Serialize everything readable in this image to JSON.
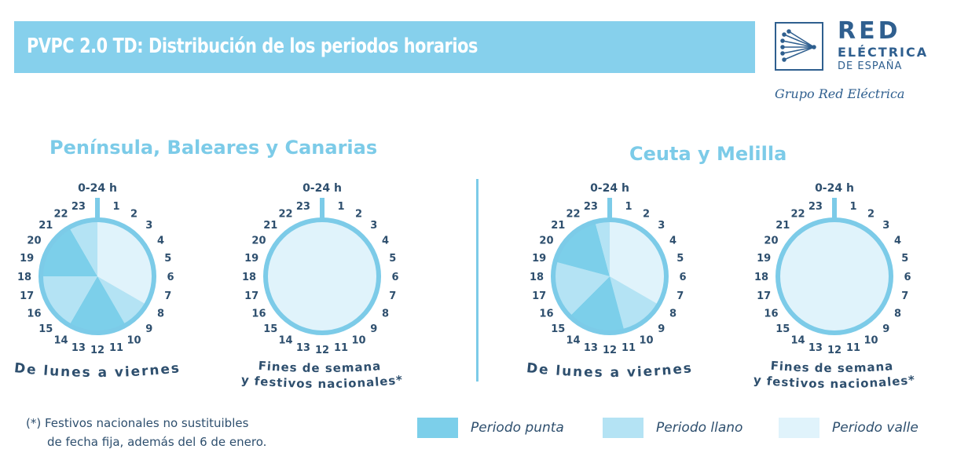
{
  "header": {
    "title": "PVPC 2.0 TD: Distribución de los periodos horarios"
  },
  "logo": {
    "line1": "RED",
    "line2": "ELÉCTRICA",
    "line3": "DE ESPAÑA",
    "tagline": "Grupo Red Eléctrica"
  },
  "colors": {
    "punta": "#7ccfea",
    "llano": "#b4e3f4",
    "valle": "#e0f3fb",
    "ring": "#7ccbe8",
    "text": "#2e4f6e",
    "banner": "#86d0ec"
  },
  "sections": [
    {
      "title": "Península, Baleares y Canarias",
      "clocks": [
        {
          "caption": "De lunes a viernes",
          "top_label": "0-24 h",
          "periods": [
            [
              0,
              8,
              "valle"
            ],
            [
              8,
              10,
              "llano"
            ],
            [
              10,
              14,
              "punta"
            ],
            [
              14,
              18,
              "llano"
            ],
            [
              18,
              22,
              "punta"
            ],
            [
              22,
              24,
              "llano"
            ]
          ]
        },
        {
          "caption": "Fines de semana y festivos nacionales*",
          "top_label": "0-24 h",
          "periods": [
            [
              0,
              24,
              "valle"
            ]
          ]
        }
      ]
    },
    {
      "title": "Ceuta y Melilla",
      "clocks": [
        {
          "caption": "De lunes a viernes",
          "top_label": "0-24 h",
          "periods": [
            [
              0,
              8,
              "valle"
            ],
            [
              8,
              11,
              "llano"
            ],
            [
              11,
              15,
              "punta"
            ],
            [
              15,
              19,
              "llano"
            ],
            [
              19,
              23,
              "punta"
            ],
            [
              23,
              24,
              "llano"
            ]
          ]
        },
        {
          "caption": "Fines de semana y festivos nacionales*",
          "top_label": "0-24 h",
          "periods": [
            [
              0,
              24,
              "valle"
            ]
          ]
        }
      ]
    }
  ],
  "hour_labels": [
    "1",
    "2",
    "3",
    "4",
    "5",
    "6",
    "7",
    "8",
    "9",
    "10",
    "11",
    "12",
    "13",
    "14",
    "15",
    "16",
    "17",
    "18",
    "19",
    "20",
    "21",
    "22",
    "23"
  ],
  "footnote": {
    "line1": "(*) Festivos nacionales no sustituibles",
    "line2": "de fecha fija, además del 6 de enero."
  },
  "legend": [
    {
      "key": "punta",
      "label": "Periodo punta"
    },
    {
      "key": "llano",
      "label": "Periodo llano"
    },
    {
      "key": "valle",
      "label": "Periodo valle"
    }
  ]
}
